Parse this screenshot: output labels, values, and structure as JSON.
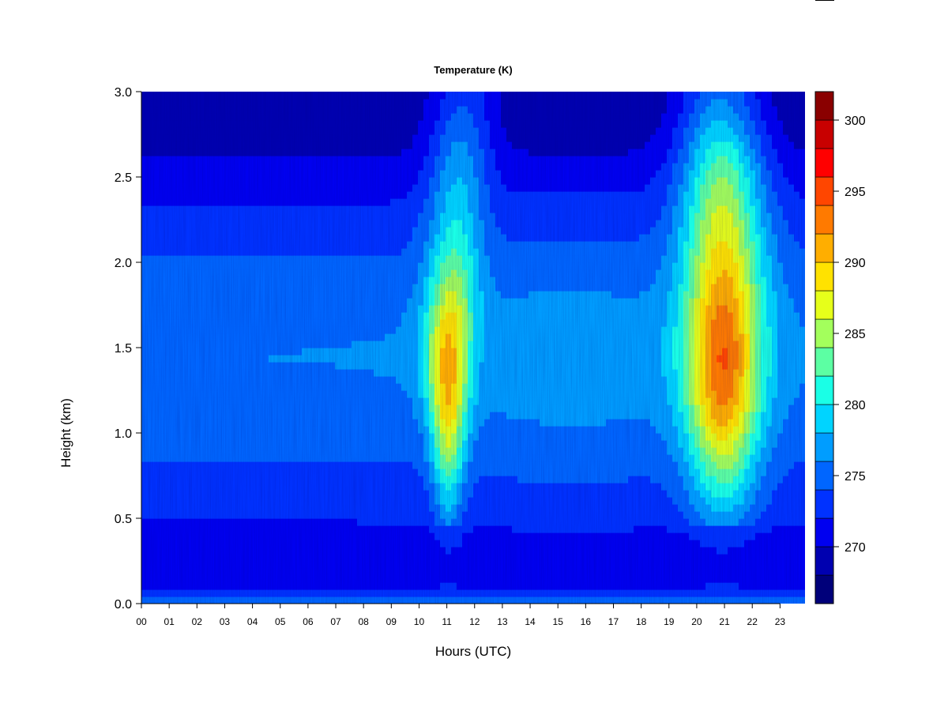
{
  "chart_data": {
    "type": "heatmap",
    "title": "Temperature (K)",
    "xlabel": "Hours (UTC)",
    "ylabel": "Height (km)",
    "x_ticks": [
      "00",
      "01",
      "02",
      "03",
      "04",
      "05",
      "06",
      "07",
      "08",
      "09",
      "10",
      "11",
      "12",
      "13",
      "14",
      "15",
      "16",
      "17",
      "18",
      "19",
      "20",
      "21",
      "22",
      "23"
    ],
    "x_range": [
      0,
      23.9
    ],
    "y_ticks": [
      "0.0",
      "0.5",
      "1.0",
      "1.5",
      "2.0",
      "2.5",
      "3.0"
    ],
    "y_range": [
      0,
      3
    ],
    "colorbar": {
      "ticks": [
        "270",
        "275",
        "280",
        "285",
        "290",
        "295",
        "300"
      ],
      "range": [
        266,
        302
      ],
      "step": 2,
      "colors": [
        "#00007a",
        "#0000b0",
        "#0000f0",
        "#0032ff",
        "#0066ff",
        "#009dff",
        "#00d4ff",
        "#1affe6",
        "#5cffa3",
        "#a3ff5c",
        "#e6ff1a",
        "#ffe200",
        "#ffae00",
        "#ff7a00",
        "#ff4600",
        "#ff0000",
        "#c80000",
        "#8a0000"
      ]
    },
    "grid": false,
    "legend": "colorbar-right"
  }
}
